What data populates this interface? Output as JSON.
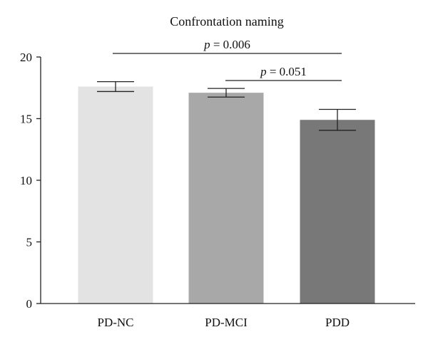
{
  "chart_data": {
    "type": "bar",
    "title": "Confrontation naming",
    "xlabel": "",
    "ylabel": "",
    "categories": [
      "PD-NC",
      "PD-MCI",
      "PDD"
    ],
    "values": [
      17.6,
      17.1,
      14.9
    ],
    "error": [
      0.4,
      0.35,
      0.85
    ],
    "bar_colors": [
      "#e3e3e3",
      "#a8a8a8",
      "#787878"
    ],
    "ylim": [
      0,
      20
    ],
    "yticks": [
      "0",
      "5",
      "10",
      "15",
      "20"
    ],
    "grid": false,
    "comparisons": [
      {
        "from": 0,
        "to": 2,
        "p_symbol": "p",
        "p_value": "= 0.006"
      },
      {
        "from": 1,
        "to": 2,
        "p_symbol": "p",
        "p_value": "= 0.051"
      }
    ]
  }
}
